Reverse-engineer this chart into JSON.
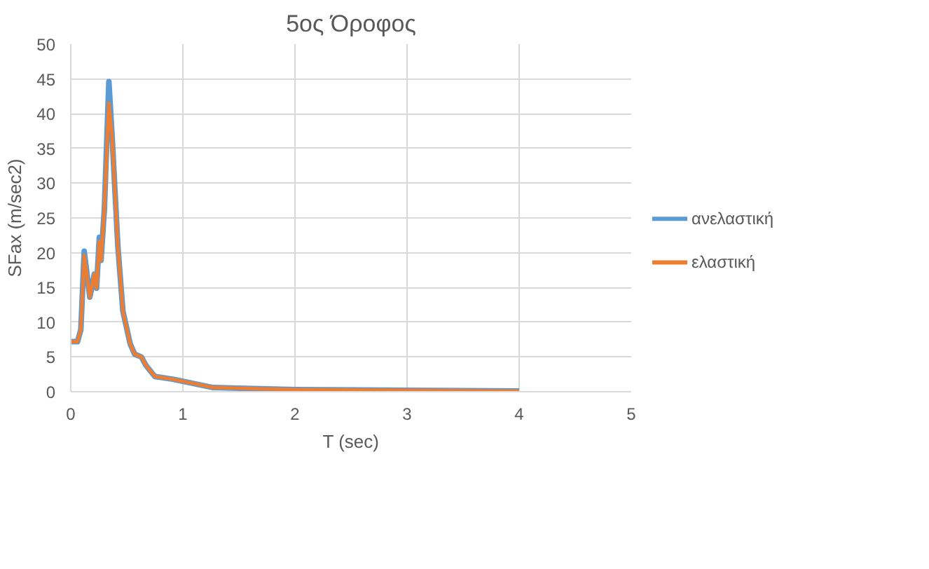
{
  "chart_data": {
    "type": "line",
    "title": "5ος Όροφος",
    "xlabel": "T (sec)",
    "ylabel": "SFax (m/sec2)",
    "x": [
      0,
      0.06,
      0.09,
      0.12,
      0.17,
      0.21,
      0.23,
      0.255,
      0.27,
      0.3,
      0.34,
      0.37,
      0.42,
      0.465,
      0.53,
      0.57,
      0.63,
      0.67,
      0.75,
      0.91,
      1.03,
      1.27,
      1.5,
      2,
      3,
      4
    ],
    "series": [
      {
        "name": "ανελαστική",
        "color": "#5b9bd5",
        "values": [
          7.2,
          7.2,
          8.9,
          20.2,
          13.6,
          16.9,
          14.9,
          22.2,
          18.9,
          26.3,
          44.6,
          36.4,
          21,
          11.6,
          6.9,
          5.4,
          5,
          3.8,
          2.2,
          1.8,
          1.4,
          0.6,
          0.5,
          0.3,
          0.2,
          0.1
        ]
      },
      {
        "name": "ελαστική",
        "color": "#ed7d31",
        "values": [
          7.2,
          7.2,
          8.9,
          19.6,
          13.6,
          16.9,
          14.9,
          21.6,
          18.9,
          26.3,
          41.5,
          36.4,
          21,
          11.6,
          6.9,
          5.4,
          5,
          3.8,
          2.2,
          1.8,
          1.4,
          0.6,
          0.5,
          0.3,
          0.2,
          0.1
        ]
      }
    ],
    "xlim": [
      0,
      5
    ],
    "xticks": [
      0,
      1,
      2,
      3,
      4,
      5
    ],
    "ylim": [
      0,
      50
    ],
    "yticks": [
      0,
      5,
      10,
      15,
      20,
      25,
      30,
      35,
      40,
      45,
      50
    ],
    "grid": true,
    "legend": "right",
    "line_style": "solid",
    "marker": "none"
  }
}
